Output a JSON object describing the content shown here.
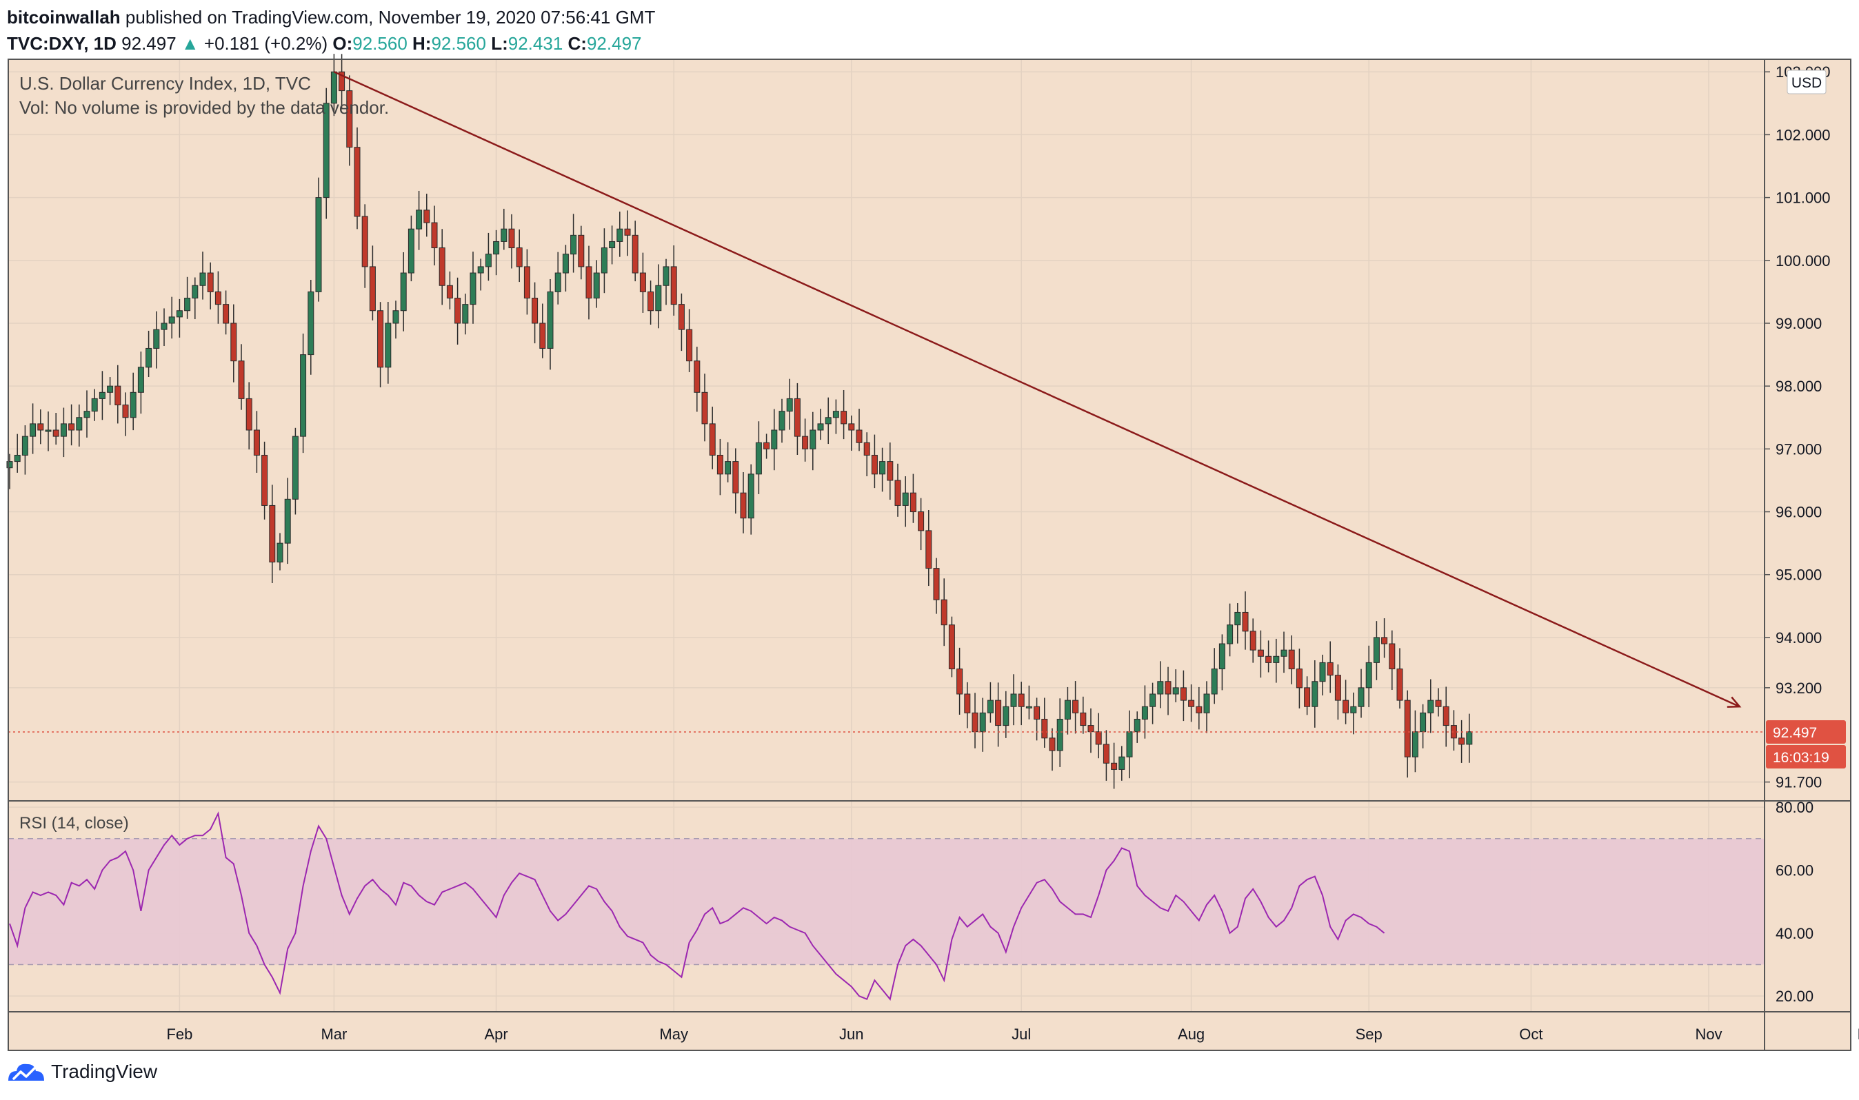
{
  "header": {
    "author": "bitcoinwallah",
    "published_text": "published on TradingView.com, November 19, 2020 07:56:41 GMT",
    "symbol": "TVC:DXY, 1D",
    "last": "92.497",
    "change": "+0.181 (+0.2%)",
    "o_label": "O:",
    "o": "92.560",
    "h_label": "H:",
    "h": "92.560",
    "l_label": "L:",
    "l": "92.431",
    "c_label": "C:",
    "c": "92.497"
  },
  "footer": {
    "brand": "TradingView"
  },
  "colors": {
    "background": "#f3dfcc",
    "up": "#2e7d57",
    "down": "#c0392b",
    "trendline": "#8b1a1a",
    "rsi_line": "#9c27b0",
    "rsi_band": "#e8c8d4",
    "last_price_tag": "#e05242"
  },
  "chart_data": [
    {
      "type": "candlestick",
      "title": "U.S. Dollar Currency Index, 1D, TVC",
      "volume_note": "Vol: No volume is provided by the data vendor.",
      "currency": "USD",
      "ylim": [
        91.4,
        103.2
      ],
      "y_ticks": [
        "103.000",
        "102.000",
        "101.000",
        "100.000",
        "99.000",
        "98.000",
        "97.000",
        "96.000",
        "95.000",
        "94.000",
        "93.200",
        "91.700"
      ],
      "x_ticks": [
        "Feb",
        "Mar",
        "Apr",
        "May",
        "Jun",
        "Jul",
        "Aug",
        "Sep",
        "Oct",
        "Nov",
        "Dec"
      ],
      "last_price": "92.497",
      "countdown": "16:03:19",
      "grid": true,
      "closes": [
        96.8,
        96.9,
        97.2,
        97.4,
        97.3,
        97.3,
        97.2,
        97.4,
        97.3,
        97.5,
        97.6,
        97.8,
        97.9,
        98.0,
        97.7,
        97.5,
        97.9,
        98.3,
        98.6,
        98.9,
        99.0,
        99.1,
        99.2,
        99.4,
        99.6,
        99.8,
        99.5,
        99.3,
        99.0,
        98.4,
        97.8,
        97.3,
        96.9,
        96.1,
        95.2,
        95.5,
        96.2,
        97.2,
        98.5,
        99.5,
        101.0,
        102.5,
        103.0,
        102.7,
        101.8,
        100.7,
        99.9,
        99.2,
        98.3,
        99.0,
        99.2,
        99.8,
        100.5,
        100.8,
        100.6,
        100.2,
        99.6,
        99.4,
        99.0,
        99.3,
        99.8,
        99.9,
        100.1,
        100.3,
        100.5,
        100.2,
        99.9,
        99.4,
        99.0,
        98.6,
        99.5,
        99.8,
        100.1,
        100.4,
        99.9,
        99.4,
        99.8,
        100.2,
        100.3,
        100.5,
        100.4,
        99.8,
        99.5,
        99.2,
        99.6,
        99.9,
        99.3,
        98.9,
        98.4,
        97.9,
        97.4,
        96.9,
        96.6,
        96.8,
        96.3,
        95.9,
        96.6,
        97.1,
        97.0,
        97.3,
        97.6,
        97.8,
        97.2,
        97.0,
        97.3,
        97.4,
        97.5,
        97.6,
        97.4,
        97.3,
        97.1,
        96.9,
        96.6,
        96.8,
        96.5,
        96.1,
        96.3,
        96.0,
        95.7,
        95.1,
        94.6,
        94.2,
        93.5,
        93.1,
        92.8,
        92.5,
        92.8,
        93.0,
        92.6,
        92.9,
        93.1,
        92.9,
        92.9,
        92.7,
        92.4,
        92.2,
        92.7,
        93.0,
        92.8,
        92.6,
        92.5,
        92.3,
        92.0,
        91.9,
        92.1,
        92.5,
        92.7,
        92.9,
        93.1,
        93.3,
        93.1,
        93.2,
        93.0,
        92.9,
        92.8,
        93.1,
        93.5,
        93.9,
        94.2,
        94.4,
        94.1,
        93.8,
        93.7,
        93.6,
        93.7,
        93.8,
        93.5,
        93.2,
        92.9,
        93.3,
        93.6,
        93.4,
        93.0,
        92.8,
        92.9,
        93.2,
        93.6,
        94.0,
        93.9,
        93.5,
        93.0,
        92.1,
        92.5,
        92.8,
        93.0,
        92.9,
        92.6,
        92.4,
        92.3,
        92.5
      ],
      "trendline": {
        "start": {
          "index": 42,
          "price": 103.0
        },
        "end": {
          "index": 224,
          "price": 92.9
        }
      }
    },
    {
      "type": "line",
      "title": "RSI (14, close)",
      "ylim": [
        15,
        82
      ],
      "y_ticks": [
        "80.00",
        "60.00",
        "40.00",
        "20.00"
      ],
      "band": [
        30,
        70
      ],
      "values": [
        43,
        36,
        48,
        53,
        52,
        53,
        52,
        49,
        56,
        55,
        57,
        54,
        60,
        63,
        64,
        66,
        60,
        47,
        60,
        64,
        68,
        71,
        68,
        70,
        71,
        71,
        73,
        78,
        64,
        62,
        52,
        40,
        36,
        30,
        26,
        21,
        35,
        40,
        55,
        66,
        74,
        70,
        61,
        52,
        46,
        51,
        55,
        57,
        54,
        52,
        49,
        56,
        55,
        52,
        50,
        49,
        53,
        54,
        55,
        56,
        54,
        51,
        48,
        45,
        52,
        56,
        59,
        58,
        57,
        52,
        47,
        44,
        46,
        49,
        52,
        55,
        54,
        50,
        47,
        42,
        39,
        38,
        37,
        33,
        31,
        30,
        28,
        26,
        37,
        41,
        46,
        48,
        43,
        44,
        46,
        48,
        47,
        45,
        43,
        45,
        44,
        42,
        41,
        40,
        36,
        33,
        30,
        27,
        25,
        23,
        20,
        19,
        25,
        22,
        19,
        30,
        36,
        38,
        36,
        33,
        30,
        25,
        38,
        45,
        42,
        44,
        46,
        42,
        40,
        34,
        42,
        48,
        52,
        56,
        57,
        54,
        50,
        48,
        46,
        46,
        45,
        52,
        60,
        63,
        67,
        66,
        55,
        52,
        50,
        48,
        47,
        52,
        50,
        47,
        44,
        49,
        52,
        47,
        40,
        42,
        51,
        54,
        50,
        45,
        42,
        44,
        48,
        55,
        57,
        58,
        52,
        42,
        38,
        44,
        46,
        45,
        43,
        42,
        40
      ]
    }
  ]
}
